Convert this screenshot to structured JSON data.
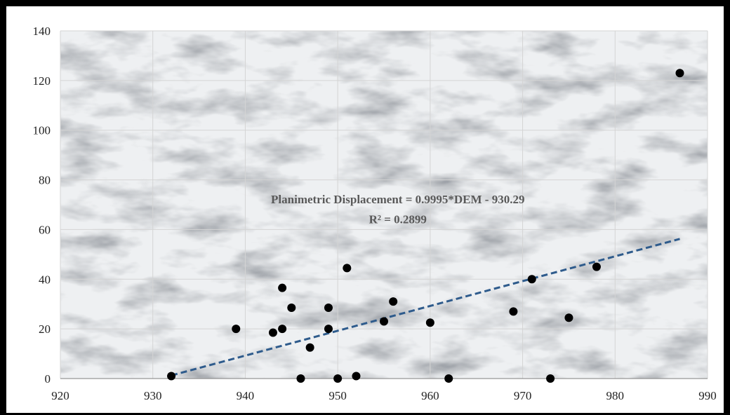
{
  "chart_data": {
    "type": "scatter",
    "title": "",
    "xlabel": "",
    "ylabel": "",
    "xlim": [
      920,
      990
    ],
    "ylim": [
      0,
      140
    ],
    "x_ticks": [
      920,
      930,
      940,
      950,
      960,
      970,
      980,
      990
    ],
    "y_ticks": [
      0,
      20,
      40,
      60,
      80,
      100,
      120,
      140
    ],
    "grid": true,
    "legend": "none",
    "marker_color": "#000000",
    "trendline_color": "#2e5b8c",
    "series": [
      {
        "points": [
          {
            "x": 932,
            "y": 1
          },
          {
            "x": 939,
            "y": 20
          },
          {
            "x": 943,
            "y": 18.5
          },
          {
            "x": 944,
            "y": 36.5
          },
          {
            "x": 944,
            "y": 20
          },
          {
            "x": 945,
            "y": 28.5
          },
          {
            "x": 946,
            "y": 0
          },
          {
            "x": 947,
            "y": 12.5
          },
          {
            "x": 949,
            "y": 28.5
          },
          {
            "x": 949,
            "y": 20
          },
          {
            "x": 950,
            "y": 0
          },
          {
            "x": 951,
            "y": 44.5
          },
          {
            "x": 952,
            "y": 1
          },
          {
            "x": 955,
            "y": 23
          },
          {
            "x": 956,
            "y": 31
          },
          {
            "x": 960,
            "y": 22.5
          },
          {
            "x": 962,
            "y": 0
          },
          {
            "x": 969,
            "y": 27
          },
          {
            "x": 971,
            "y": 40
          },
          {
            "x": 973,
            "y": 0
          },
          {
            "x": 975,
            "y": 24.5
          },
          {
            "x": 978,
            "y": 45
          },
          {
            "x": 987,
            "y": 123
          }
        ]
      }
    ],
    "trendline": {
      "type": "linear",
      "x_range": [
        932,
        987
      ],
      "slope": 0.9995,
      "intercept": -930.29,
      "style": "dashed"
    },
    "annotations": [
      "Planimetric Displacement = 0.9995*DEM - 930.29",
      "R² = 0.2899"
    ]
  }
}
